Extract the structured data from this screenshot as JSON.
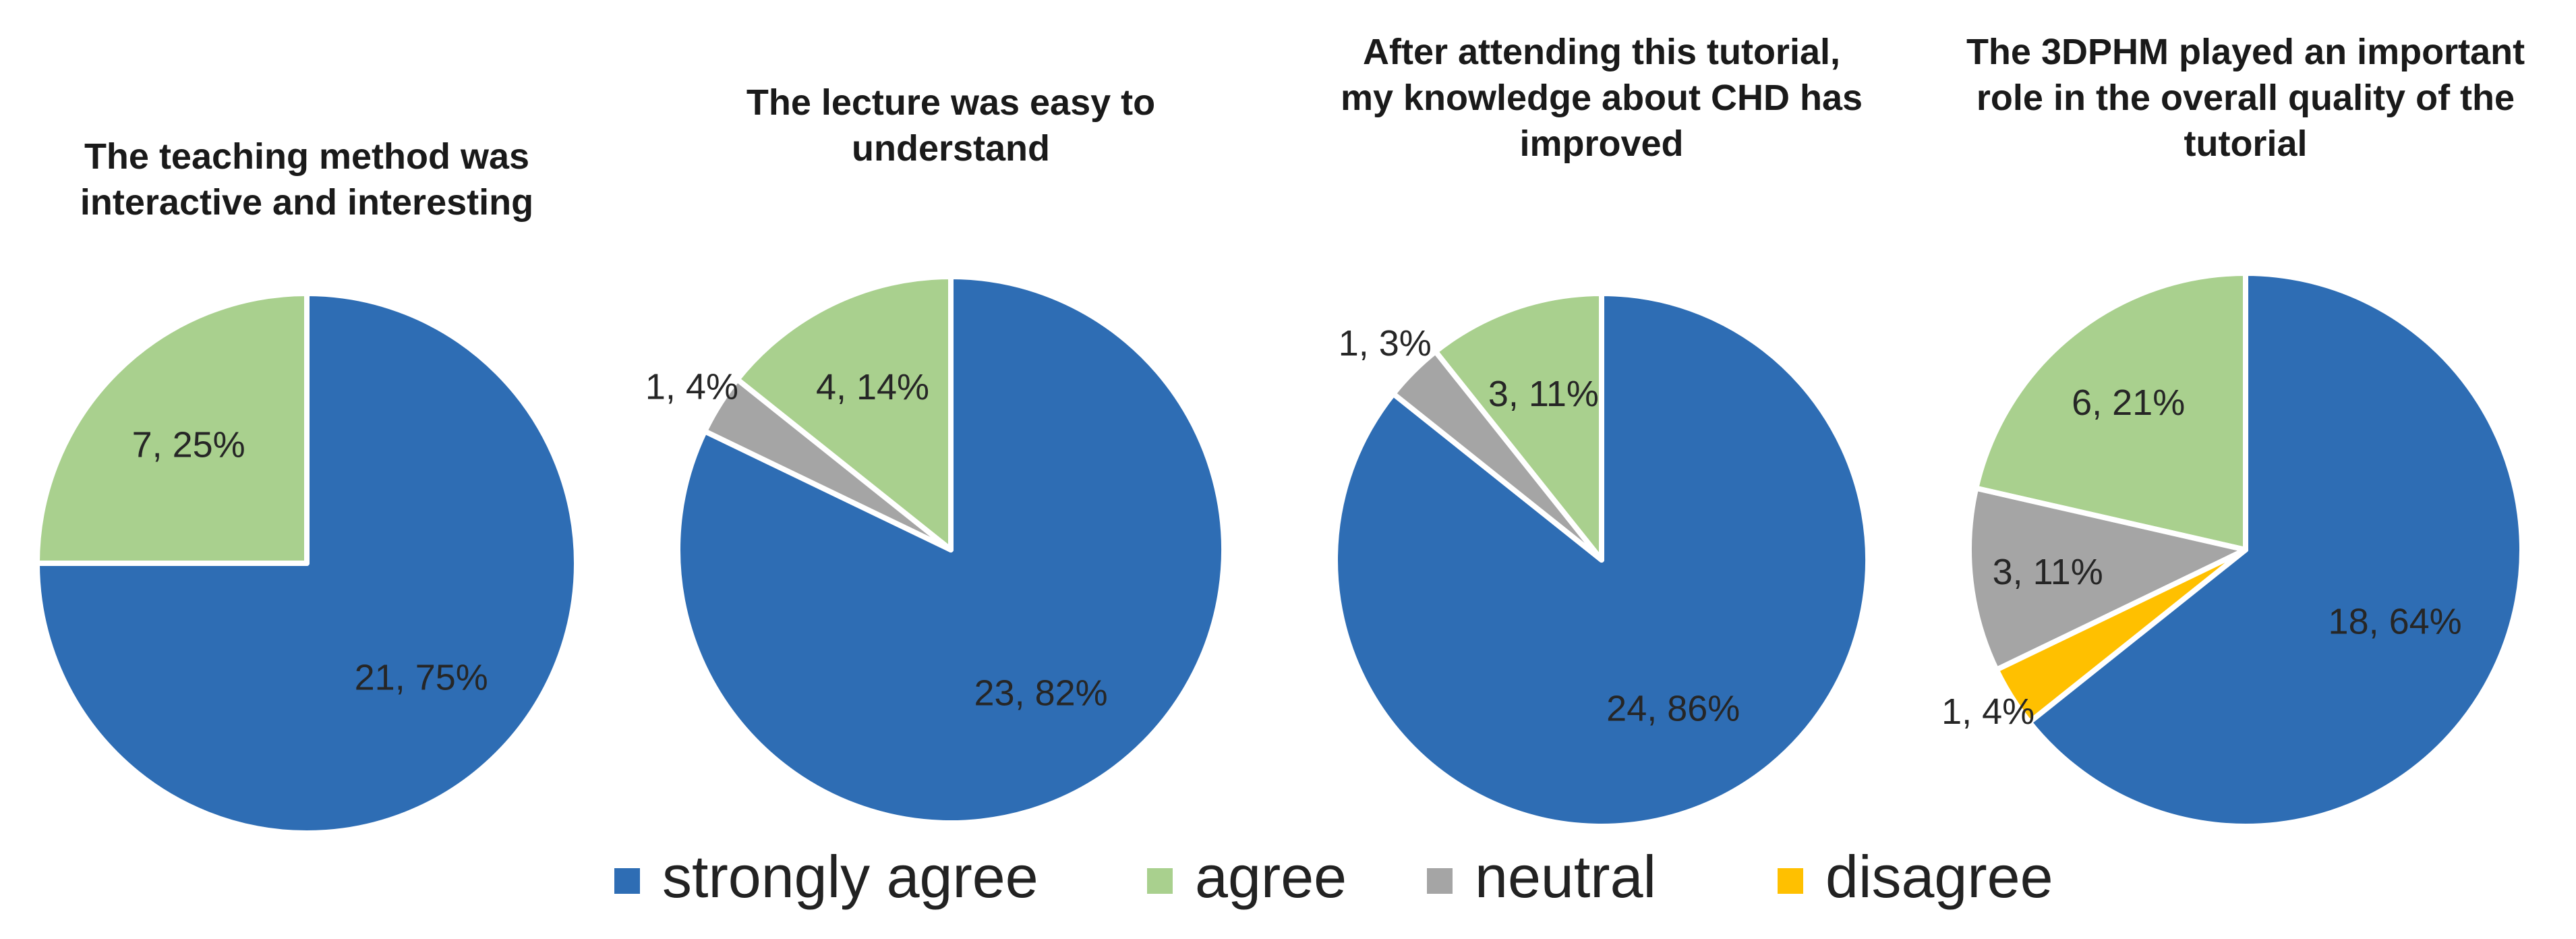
{
  "legend": [
    {
      "key": "strongly_agree",
      "label": "strongly agree",
      "color": "#2E6DB4"
    },
    {
      "key": "agree",
      "label": "agree",
      "color": "#A9D08E"
    },
    {
      "key": "neutral",
      "label": "neutral",
      "color": "#A5A5A5"
    },
    {
      "key": "disagree",
      "label": "disagree",
      "color": "#FFC000"
    }
  ],
  "chart_data": [
    {
      "type": "pie",
      "title_lines": [
        "The teaching method was",
        "interactive and interesting"
      ],
      "categories": [
        "strongly agree",
        "agree"
      ],
      "values": [
        21,
        7
      ],
      "percent_labels": [
        "75%",
        "25%"
      ],
      "data_labels": [
        "21, 75%",
        "7, 25%"
      ]
    },
    {
      "type": "pie",
      "title_lines": [
        "The lecture was easy to",
        "understand"
      ],
      "categories": [
        "strongly agree",
        "agree",
        "neutral"
      ],
      "values": [
        23,
        4,
        1
      ],
      "percent_labels": [
        "82%",
        "14%",
        "4%"
      ],
      "data_labels": [
        "23, 82%",
        "4, 14%",
        "1, 4%"
      ]
    },
    {
      "type": "pie",
      "title_lines": [
        "After attending this tutorial,",
        "my knowledge about CHD has",
        "improved"
      ],
      "categories": [
        "strongly agree",
        "agree",
        "neutral"
      ],
      "values": [
        24,
        3,
        1
      ],
      "percent_labels": [
        "86%",
        "11%",
        "3%"
      ],
      "data_labels": [
        "24, 86%",
        "3, 11%",
        "1, 3%"
      ]
    },
    {
      "type": "pie",
      "title_lines": [
        "The 3DPHM played an important",
        "role in the overall quality of the",
        "tutorial"
      ],
      "categories": [
        "strongly agree",
        "agree",
        "neutral",
        "disagree"
      ],
      "values": [
        18,
        6,
        3,
        1
      ],
      "percent_labels": [
        "64%",
        "21%",
        "11%",
        "4%"
      ],
      "data_labels": [
        "18, 64%",
        "6, 21%",
        "3, 11%",
        "1, 4%"
      ]
    }
  ]
}
